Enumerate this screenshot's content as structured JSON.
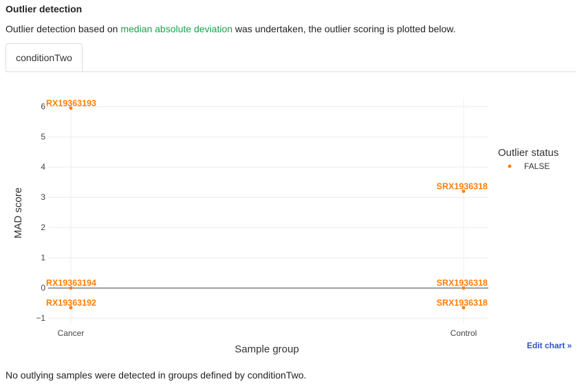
{
  "section": {
    "title": "Outlier detection",
    "intro_before": "Outlier detection based on ",
    "intro_link": "median absolute deviation",
    "intro_after": " was undertaken, the outlier scoring is plotted below."
  },
  "tabs": [
    {
      "label": "conditionTwo",
      "active": true
    }
  ],
  "edit_chart_label": "Edit chart »",
  "footnote": "No outlying samples were detected in groups defined by conditionTwo.",
  "colors": {
    "accent_orange": "#ff7f0e",
    "link_green": "#18a34a",
    "link_blue": "#2e51c8"
  },
  "chart_data": {
    "type": "scatter",
    "xlabel": "Sample group",
    "ylabel": "MAD score",
    "categories": [
      "Cancer",
      "Control"
    ],
    "ylim": [
      -1.2,
      6.3
    ],
    "yticks": [
      -1,
      0,
      1,
      2,
      3,
      4,
      5,
      6
    ],
    "ytick_labels": [
      "−1",
      "0",
      "1",
      "2",
      "3",
      "4",
      "5",
      "6"
    ],
    "grid": true,
    "legend": {
      "title": "Outlier status",
      "placement": "right",
      "entries": [
        "FALSE"
      ]
    },
    "series": [
      {
        "name": "FALSE",
        "points": [
          {
            "x": "Cancer",
            "y": 5.95,
            "label": "RX19363193"
          },
          {
            "x": "Cancer",
            "y": 0.0,
            "label": "RX19363194"
          },
          {
            "x": "Cancer",
            "y": -0.65,
            "label": "RX19363192"
          },
          {
            "x": "Control",
            "y": 3.2,
            "label": "SRX1936318"
          },
          {
            "x": "Control",
            "y": 0.0,
            "label": "SRX1936318"
          },
          {
            "x": "Control",
            "y": -0.65,
            "label": "SRX1936318"
          }
        ]
      }
    ]
  }
}
